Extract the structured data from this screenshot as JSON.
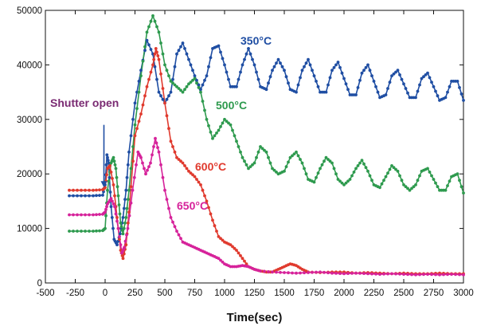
{
  "chart_data": {
    "type": "line",
    "title": "",
    "xlabel": "Time(sec)",
    "ylabel": "",
    "xlim": [
      -500,
      3000
    ],
    "ylim": [
      0,
      50000
    ],
    "x_ticks": [
      -500,
      -250,
      0,
      250,
      500,
      750,
      1000,
      1250,
      1500,
      1750,
      2000,
      2250,
      2500,
      2750,
      3000
    ],
    "y_ticks": [
      0,
      10000,
      20000,
      30000,
      40000,
      50000
    ],
    "grid": false,
    "series": [
      {
        "name": "350°C",
        "color": "#1f4ea3",
        "points": [
          [
            -300,
            16000
          ],
          [
            -200,
            16000
          ],
          [
            -100,
            16000
          ],
          [
            -20,
            16100
          ],
          [
            0,
            18000
          ],
          [
            15,
            23500
          ],
          [
            30,
            22000
          ],
          [
            50,
            14000
          ],
          [
            75,
            8000
          ],
          [
            100,
            7000
          ],
          [
            125,
            9000
          ],
          [
            150,
            12000
          ],
          [
            175,
            17000
          ],
          [
            200,
            24000
          ],
          [
            250,
            33000
          ],
          [
            300,
            39000
          ],
          [
            350,
            44500
          ],
          [
            400,
            42000
          ],
          [
            450,
            35000
          ],
          [
            500,
            33000
          ],
          [
            550,
            35000
          ],
          [
            600,
            42000
          ],
          [
            650,
            44000
          ],
          [
            700,
            41000
          ],
          [
            750,
            38000
          ],
          [
            800,
            35500
          ],
          [
            850,
            38000
          ],
          [
            900,
            43000
          ],
          [
            950,
            43500
          ],
          [
            1000,
            40000
          ],
          [
            1050,
            36000
          ],
          [
            1100,
            36000
          ],
          [
            1150,
            40000
          ],
          [
            1200,
            43000
          ],
          [
            1250,
            40000
          ],
          [
            1300,
            36000
          ],
          [
            1350,
            35500
          ],
          [
            1400,
            39000
          ],
          [
            1450,
            41000
          ],
          [
            1500,
            39000
          ],
          [
            1550,
            35500
          ],
          [
            1600,
            35000
          ],
          [
            1650,
            39000
          ],
          [
            1700,
            41000
          ],
          [
            1750,
            38000
          ],
          [
            1800,
            35000
          ],
          [
            1850,
            35000
          ],
          [
            1900,
            39000
          ],
          [
            1950,
            40500
          ],
          [
            2000,
            37500
          ],
          [
            2050,
            34500
          ],
          [
            2100,
            34500
          ],
          [
            2150,
            38500
          ],
          [
            2200,
            40000
          ],
          [
            2250,
            37000
          ],
          [
            2300,
            34000
          ],
          [
            2350,
            34500
          ],
          [
            2400,
            38000
          ],
          [
            2450,
            39000
          ],
          [
            2500,
            36500
          ],
          [
            2550,
            34000
          ],
          [
            2600,
            34000
          ],
          [
            2650,
            37500
          ],
          [
            2700,
            38500
          ],
          [
            2750,
            36000
          ],
          [
            2800,
            33500
          ],
          [
            2850,
            34000
          ],
          [
            2900,
            37000
          ],
          [
            2950,
            37000
          ],
          [
            3000,
            33500
          ]
        ]
      },
      {
        "name": "500°C",
        "color": "#2e9a4e",
        "points": [
          [
            -300,
            9500
          ],
          [
            -200,
            9500
          ],
          [
            -100,
            9500
          ],
          [
            -20,
            9600
          ],
          [
            0,
            10000
          ],
          [
            20,
            17000
          ],
          [
            50,
            22000
          ],
          [
            70,
            23000
          ],
          [
            90,
            21000
          ],
          [
            110,
            16000
          ],
          [
            130,
            11000
          ],
          [
            150,
            9000
          ],
          [
            175,
            12000
          ],
          [
            200,
            17000
          ],
          [
            250,
            29000
          ],
          [
            300,
            38000
          ],
          [
            350,
            46000
          ],
          [
            400,
            49000
          ],
          [
            450,
            46000
          ],
          [
            500,
            40000
          ],
          [
            550,
            37000
          ],
          [
            600,
            36000
          ],
          [
            650,
            35000
          ],
          [
            700,
            36500
          ],
          [
            750,
            37500
          ],
          [
            800,
            35000
          ],
          [
            850,
            30000
          ],
          [
            900,
            26500
          ],
          [
            950,
            28000
          ],
          [
            1000,
            30000
          ],
          [
            1050,
            29000
          ],
          [
            1100,
            26000
          ],
          [
            1150,
            23000
          ],
          [
            1200,
            21000
          ],
          [
            1250,
            22000
          ],
          [
            1300,
            25000
          ],
          [
            1350,
            24000
          ],
          [
            1400,
            21000
          ],
          [
            1450,
            20000
          ],
          [
            1500,
            20500
          ],
          [
            1550,
            23000
          ],
          [
            1600,
            24000
          ],
          [
            1650,
            22000
          ],
          [
            1700,
            19000
          ],
          [
            1750,
            18500
          ],
          [
            1800,
            21000
          ],
          [
            1850,
            23000
          ],
          [
            1900,
            22000
          ],
          [
            1950,
            19000
          ],
          [
            2000,
            18000
          ],
          [
            2050,
            19000
          ],
          [
            2100,
            21000
          ],
          [
            2150,
            22500
          ],
          [
            2200,
            20500
          ],
          [
            2250,
            18000
          ],
          [
            2300,
            17500
          ],
          [
            2350,
            19500
          ],
          [
            2400,
            21500
          ],
          [
            2450,
            20500
          ],
          [
            2500,
            18000
          ],
          [
            2550,
            17000
          ],
          [
            2600,
            18000
          ],
          [
            2650,
            20500
          ],
          [
            2700,
            21000
          ],
          [
            2750,
            19000
          ],
          [
            2800,
            17000
          ],
          [
            2850,
            17000
          ],
          [
            2900,
            19500
          ],
          [
            2950,
            20000
          ],
          [
            3000,
            16500
          ]
        ]
      },
      {
        "name": "600°C",
        "color": "#e03a2e",
        "points": [
          [
            -300,
            17000
          ],
          [
            -200,
            17000
          ],
          [
            -100,
            17000
          ],
          [
            -20,
            17100
          ],
          [
            0,
            17500
          ],
          [
            20,
            21000
          ],
          [
            40,
            21500
          ],
          [
            70,
            18000
          ],
          [
            100,
            12000
          ],
          [
            130,
            6000
          ],
          [
            150,
            4500
          ],
          [
            175,
            7000
          ],
          [
            200,
            13000
          ],
          [
            250,
            27000
          ],
          [
            300,
            31000
          ],
          [
            350,
            36000
          ],
          [
            400,
            40000
          ],
          [
            425,
            43000
          ],
          [
            450,
            41000
          ],
          [
            500,
            33000
          ],
          [
            550,
            26000
          ],
          [
            600,
            23000
          ],
          [
            650,
            22000
          ],
          [
            700,
            20500
          ],
          [
            750,
            19500
          ],
          [
            800,
            18000
          ],
          [
            850,
            15000
          ],
          [
            900,
            11500
          ],
          [
            950,
            8500
          ],
          [
            1000,
            7500
          ],
          [
            1050,
            7000
          ],
          [
            1100,
            6000
          ],
          [
            1150,
            4500
          ],
          [
            1200,
            3000
          ],
          [
            1250,
            2500
          ],
          [
            1300,
            2200
          ],
          [
            1350,
            2000
          ],
          [
            1400,
            2000
          ],
          [
            1450,
            2500
          ],
          [
            1500,
            3000
          ],
          [
            1550,
            3500
          ],
          [
            1600,
            3200
          ],
          [
            1650,
            2500
          ],
          [
            1700,
            2000
          ],
          [
            1800,
            1900
          ],
          [
            1900,
            2000
          ],
          [
            2000,
            2000
          ],
          [
            2100,
            1800
          ],
          [
            2200,
            1900
          ],
          [
            2300,
            1800
          ],
          [
            2400,
            1700
          ],
          [
            2500,
            1800
          ],
          [
            2600,
            1700
          ],
          [
            2700,
            1700
          ],
          [
            2800,
            1800
          ],
          [
            2900,
            1700
          ],
          [
            3000,
            1700
          ]
        ]
      },
      {
        "name": "650°C",
        "color": "#d6229a",
        "points": [
          [
            -300,
            12500
          ],
          [
            -200,
            12500
          ],
          [
            -100,
            12500
          ],
          [
            -20,
            12600
          ],
          [
            0,
            13000
          ],
          [
            20,
            14500
          ],
          [
            50,
            15500
          ],
          [
            80,
            14000
          ],
          [
            110,
            10000
          ],
          [
            140,
            5500
          ],
          [
            160,
            6500
          ],
          [
            190,
            10000
          ],
          [
            230,
            17000
          ],
          [
            275,
            24000
          ],
          [
            300,
            23000
          ],
          [
            340,
            20000
          ],
          [
            380,
            22000
          ],
          [
            420,
            26500
          ],
          [
            450,
            24000
          ],
          [
            500,
            17000
          ],
          [
            550,
            12000
          ],
          [
            600,
            9500
          ],
          [
            650,
            7500
          ],
          [
            700,
            7000
          ],
          [
            750,
            6500
          ],
          [
            800,
            6000
          ],
          [
            850,
            5500
          ],
          [
            900,
            5000
          ],
          [
            950,
            4500
          ],
          [
            1000,
            3500
          ],
          [
            1050,
            3000
          ],
          [
            1100,
            3000
          ],
          [
            1150,
            3200
          ],
          [
            1200,
            3000
          ],
          [
            1250,
            2500
          ],
          [
            1300,
            2200
          ],
          [
            1400,
            2000
          ],
          [
            1500,
            1900
          ],
          [
            1600,
            1800
          ],
          [
            1700,
            1900
          ],
          [
            1800,
            2000
          ],
          [
            1900,
            1800
          ],
          [
            2000,
            1700
          ],
          [
            2100,
            1800
          ],
          [
            2200,
            1700
          ],
          [
            2300,
            1600
          ],
          [
            2400,
            1700
          ],
          [
            2500,
            1600
          ],
          [
            2600,
            1500
          ],
          [
            2700,
            1600
          ],
          [
            2800,
            1500
          ],
          [
            2900,
            1600
          ],
          [
            3000,
            1500
          ]
        ]
      }
    ],
    "annotations": [
      {
        "text": "Shutter open",
        "color": "#7a2a72",
        "arrow_at": {
          "x": -10,
          "y_from": 29000,
          "y_to": 17500
        }
      }
    ]
  }
}
